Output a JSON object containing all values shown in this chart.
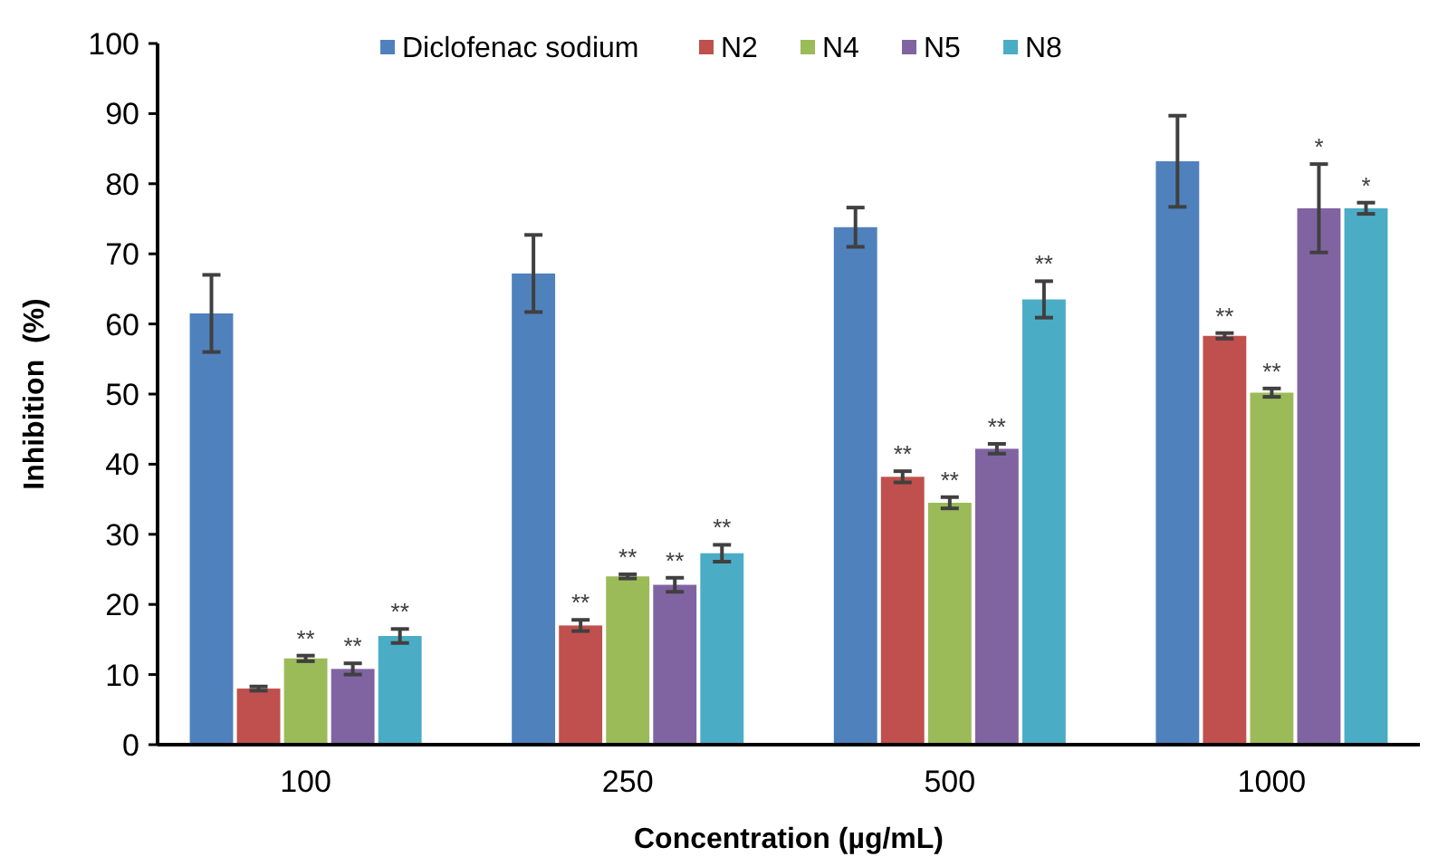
{
  "chart_data": {
    "type": "bar",
    "xlabel": "Concentration (µg/mL)",
    "ylabel": "Inhibition  (%)",
    "categories": [
      "100",
      "250",
      "500",
      "1000"
    ],
    "series": [
      {
        "name": "Diclofenac sodium",
        "color": "#4f81bd",
        "values": [
          61.5,
          67.2,
          73.8,
          83.2
        ],
        "errors": [
          5.5,
          5.5,
          2.8,
          6.5
        ]
      },
      {
        "name": "N2",
        "color": "#c0504d",
        "values": [
          8,
          17,
          38.2,
          58.3
        ],
        "errors": [
          0.3,
          0.8,
          0.8,
          0.4
        ],
        "value_labels": [
          null,
          "**",
          "**",
          "**"
        ]
      },
      {
        "name": "N4",
        "color": "#9bbb59",
        "values": [
          12.3,
          24,
          34.5,
          50.2
        ],
        "errors": [
          0.4,
          0.3,
          0.8,
          0.6
        ],
        "value_labels": [
          "**",
          "**",
          "**",
          "**"
        ]
      },
      {
        "name": "N5",
        "color": "#8064a2",
        "values": [
          10.8,
          22.8,
          42.2,
          76.5
        ],
        "errors": [
          0.8,
          1,
          0.7,
          6.3
        ],
        "value_labels": [
          "**",
          "**",
          "**",
          "*"
        ]
      },
      {
        "name": "N8",
        "color": "#4bacc6",
        "values": [
          15.5,
          27.3,
          63.5,
          76.5
        ],
        "errors": [
          1,
          1.2,
          2.6,
          0.8
        ],
        "value_labels": [
          "**",
          "**",
          "**",
          "*"
        ]
      }
    ],
    "ylim": [
      0,
      100
    ],
    "yticks": [
      0,
      10,
      20,
      30,
      40,
      50,
      60,
      70,
      80,
      90,
      100
    ],
    "legend": "top",
    "grid": false
  }
}
